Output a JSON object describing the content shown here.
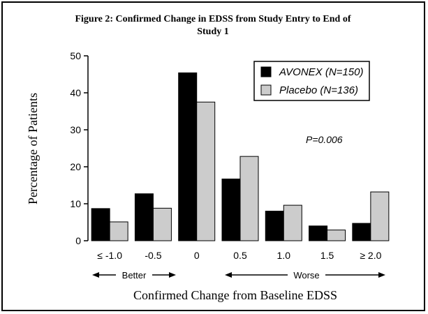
{
  "chart_data": {
    "type": "bar",
    "title_line1": "Figure 2:  Confirmed Change in EDSS from Study Entry to End of",
    "title_line2": "Study 1",
    "xlabel": "Confirmed Change from Baseline EDSS",
    "ylabel": "Percentage of Patients",
    "ylim": [
      0,
      50
    ],
    "yticks": [
      "0",
      "10",
      "20",
      "30",
      "40",
      "50"
    ],
    "categories": [
      "≤ -1.0",
      "-0.5",
      "0",
      "0.5",
      "1.0",
      "1.5",
      "≥ 2.0"
    ],
    "series": [
      {
        "name": "AVONEX (N=150)",
        "color": "#000000",
        "values": [
          8.7,
          12.7,
          45.4,
          16.7,
          8.0,
          4.0,
          4.7
        ]
      },
      {
        "name": "Placebo (N=136)",
        "color": "#cccccc",
        "values": [
          5.1,
          8.8,
          37.5,
          22.8,
          9.6,
          2.9,
          13.2
        ]
      }
    ],
    "legend_position": "top-right",
    "annotation": "P=0.006",
    "direction_labels": {
      "better": "Better",
      "worse": "Worse"
    },
    "grid": false
  }
}
